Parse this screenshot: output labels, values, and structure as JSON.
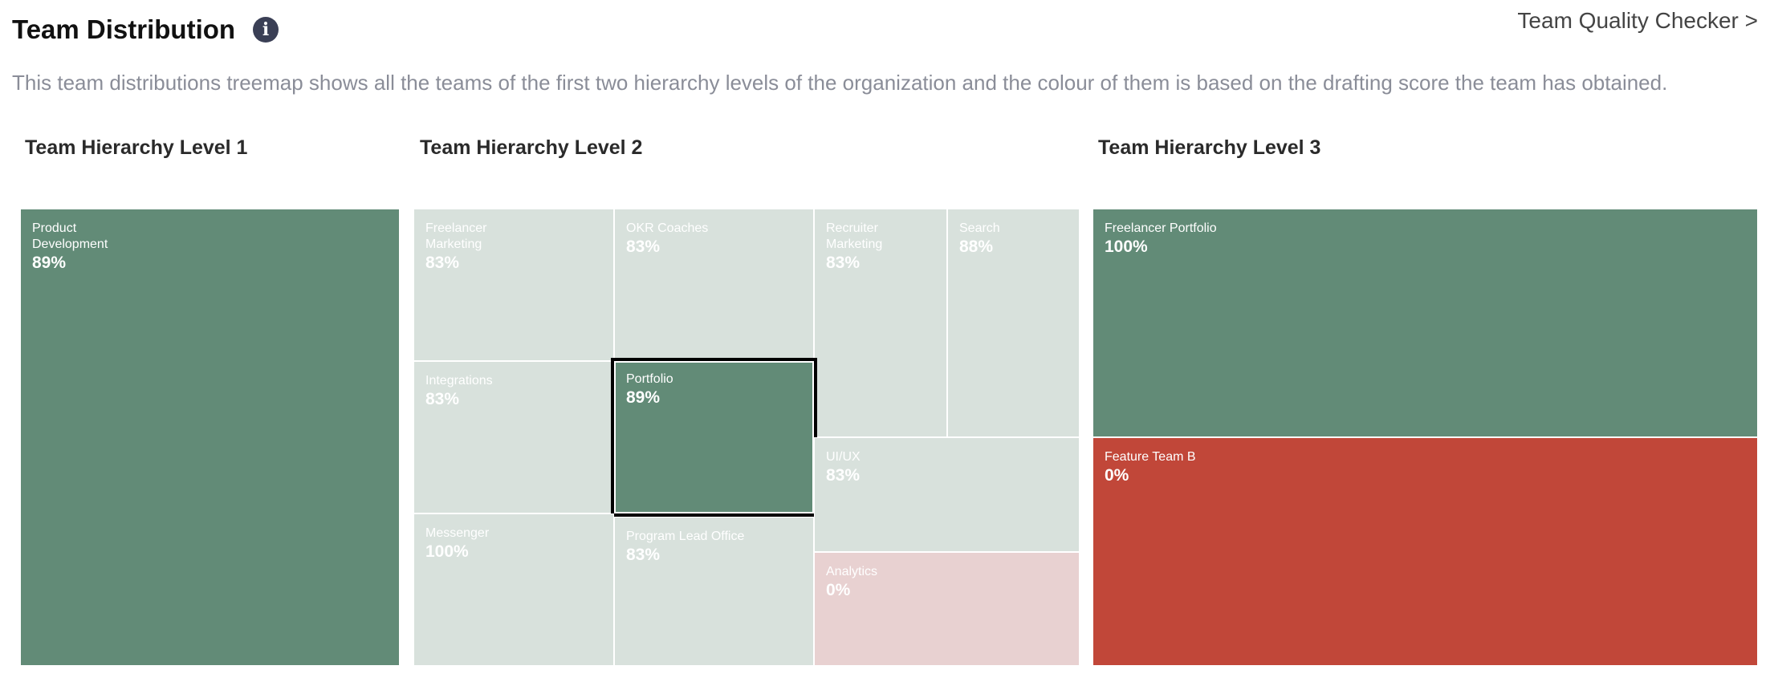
{
  "header": {
    "title": "Team Distribution",
    "info_icon": "info-icon",
    "link_label": "Team Quality Checker >",
    "description": "This team distributions treemap shows all the teams of the first two hierarchy levels of the organization and the colour of them is based on the drafting score the team has obtained."
  },
  "colors": {
    "high": "#628b77",
    "low": "#c14739",
    "high_dimmed": "#d8e1dc",
    "low_dimmed": "#e8d1d1"
  },
  "levels": [
    {
      "title": "Team Hierarchy Level 1",
      "tiles": [
        {
          "name": "Product Development",
          "score": "89%"
        }
      ]
    },
    {
      "title": "Team Hierarchy Level 2",
      "selected": "Portfolio",
      "tiles": [
        {
          "name": "Freelancer Marketing",
          "score": "83%"
        },
        {
          "name": "OKR Coaches",
          "score": "83%"
        },
        {
          "name": "Recruiter Marketing",
          "score": "83%"
        },
        {
          "name": "Search",
          "score": "88%"
        },
        {
          "name": "Integrations",
          "score": "83%"
        },
        {
          "name": "Portfolio",
          "score": "89%"
        },
        {
          "name": "UI/UX",
          "score": "83%"
        },
        {
          "name": "Messenger",
          "score": "100%"
        },
        {
          "name": "Program Lead Office",
          "score": "83%"
        },
        {
          "name": "Analytics",
          "score": "0%"
        }
      ]
    },
    {
      "title": "Team Hierarchy Level 3",
      "tiles": [
        {
          "name": "Freelancer Portfolio",
          "score": "100%"
        },
        {
          "name": "Feature Team B",
          "score": "0%"
        }
      ]
    }
  ]
}
